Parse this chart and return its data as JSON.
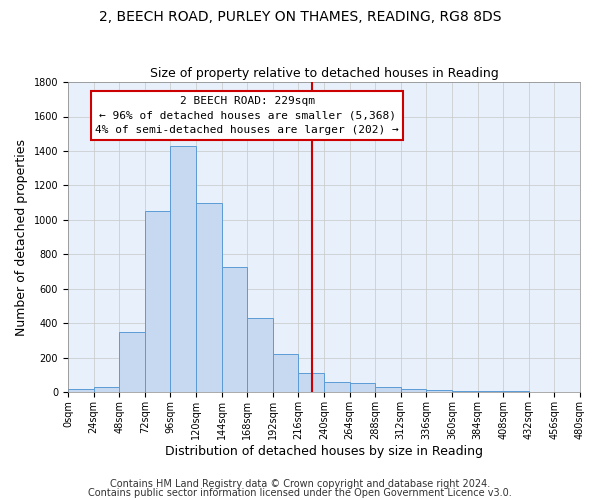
{
  "title": "2, BEECH ROAD, PURLEY ON THAMES, READING, RG8 8DS",
  "subtitle": "Size of property relative to detached houses in Reading",
  "xlabel": "Distribution of detached houses by size in Reading",
  "ylabel": "Number of detached properties",
  "bar_edges": [
    0,
    24,
    48,
    72,
    96,
    120,
    144,
    168,
    192,
    216,
    240,
    264,
    288,
    312,
    336,
    360,
    384,
    408,
    432,
    456,
    480
  ],
  "bar_heights": [
    15,
    30,
    350,
    1050,
    1430,
    1100,
    725,
    430,
    220,
    110,
    60,
    50,
    30,
    20,
    10,
    5,
    5,
    5,
    3,
    2
  ],
  "bar_color": "#c6d9f0",
  "bar_edge_color": "#5b9bd5",
  "vline_x": 229,
  "vline_color": "#cc0000",
  "annotation_title": "2 BEECH ROAD: 229sqm",
  "annotation_line1": "← 96% of detached houses are smaller (5,368)",
  "annotation_line2": "4% of semi-detached houses are larger (202) →",
  "annotation_box_color": "#cc0000",
  "annotation_bg": "#ffffff",
  "ylim": [
    0,
    1800
  ],
  "yticks": [
    0,
    200,
    400,
    600,
    800,
    1000,
    1200,
    1400,
    1600,
    1800
  ],
  "xtick_labels": [
    "0sqm",
    "24sqm",
    "48sqm",
    "72sqm",
    "96sqm",
    "120sqm",
    "144sqm",
    "168sqm",
    "192sqm",
    "216sqm",
    "240sqm",
    "264sqm",
    "288sqm",
    "312sqm",
    "336sqm",
    "360sqm",
    "384sqm",
    "408sqm",
    "432sqm",
    "456sqm",
    "480sqm"
  ],
  "footer1": "Contains HM Land Registry data © Crown copyright and database right 2024.",
  "footer2": "Contains public sector information licensed under the Open Government Licence v3.0.",
  "bg_color": "#ffffff",
  "plot_bg_color": "#e8f0fb",
  "grid_color": "#c8c8c8",
  "title_fontsize": 10,
  "subtitle_fontsize": 9,
  "axis_label_fontsize": 9,
  "tick_fontsize": 7,
  "footer_fontsize": 7,
  "annotation_fontsize": 8
}
